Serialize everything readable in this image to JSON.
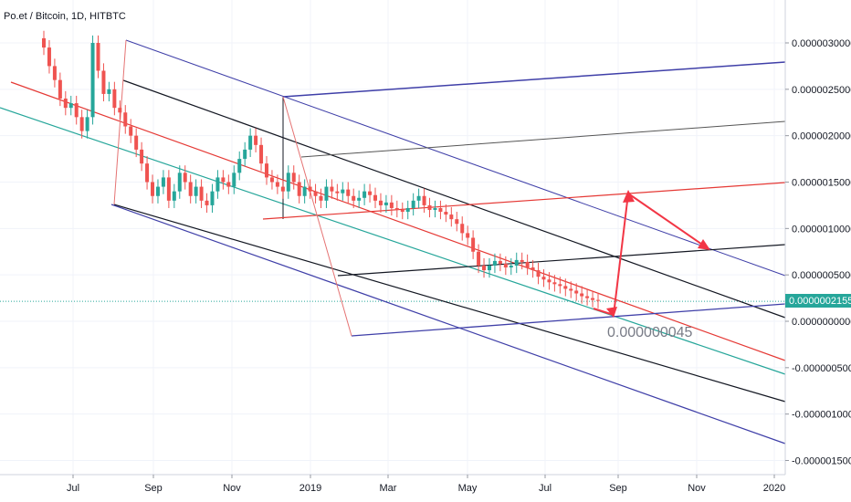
{
  "chart_title": "Po.et / Bitcoin, 1D, HITBTC",
  "colors": {
    "candle_up": "#26a69a",
    "candle_down": "#ef5350",
    "fork_red": "#e53935",
    "fork_black": "#131722",
    "fork_blue": "#3f3fa8",
    "teal_line": "#26a69a",
    "price_tag": "#26a69a",
    "arrow": "#f23645"
  },
  "chart_data": {
    "type": "candlestick",
    "y_tick_labels": [
      "0.0000030000",
      "0.0000025000",
      "0.0000020000",
      "0.0000015000",
      "0.0000010000",
      "0.0000005000",
      "0.0000000000",
      "-0.0000005000",
      "-0.0000010000",
      "-0.0000015000"
    ],
    "y_ticks": [
      3e-06,
      2.5e-06,
      2e-06,
      1.5e-06,
      1e-06,
      5e-07,
      0.0,
      -5e-07,
      -1e-06,
      -1.5e-06
    ],
    "x_tick_labels": [
      "Jul",
      "Sep",
      "Nov",
      "2019",
      "Mar",
      "May",
      "Jul",
      "Sep",
      "Nov",
      "2020"
    ],
    "current_price_label": "0.0000002155",
    "current_price": 2.155e-07,
    "annotation": "0.000000045",
    "series_close": [
      2.95,
      2.75,
      2.6,
      2.4,
      2.3,
      2.35,
      2.2,
      2.05,
      2.2,
      3.0,
      2.7,
      2.45,
      2.5,
      2.3,
      2.25,
      2.1,
      2.0,
      1.85,
      1.7,
      1.5,
      1.35,
      1.45,
      1.55,
      1.3,
      1.4,
      1.6,
      1.5,
      1.35,
      1.45,
      1.3,
      1.25,
      1.4,
      1.55,
      1.5,
      1.45,
      1.6,
      1.75,
      1.85,
      2.0,
      1.9,
      1.7,
      1.55,
      1.5,
      1.45,
      1.4,
      1.6,
      1.5,
      1.35,
      1.45,
      1.4,
      1.35,
      1.3,
      1.45,
      1.4,
      1.38,
      1.42,
      1.35,
      1.3,
      1.33,
      1.4,
      1.36,
      1.3,
      1.25,
      1.28,
      1.22,
      1.2,
      1.18,
      1.22,
      1.3,
      1.35,
      1.25,
      1.2,
      1.22,
      1.18,
      1.15,
      1.1,
      1.05,
      0.95,
      0.9,
      0.75,
      0.6,
      0.55,
      0.6,
      0.65,
      0.62,
      0.58,
      0.6,
      0.66,
      0.64,
      0.58,
      0.55,
      0.48,
      0.45,
      0.42,
      0.4,
      0.38,
      0.35,
      0.33,
      0.3,
      0.27,
      0.25,
      0.23,
      0.22
    ]
  }
}
